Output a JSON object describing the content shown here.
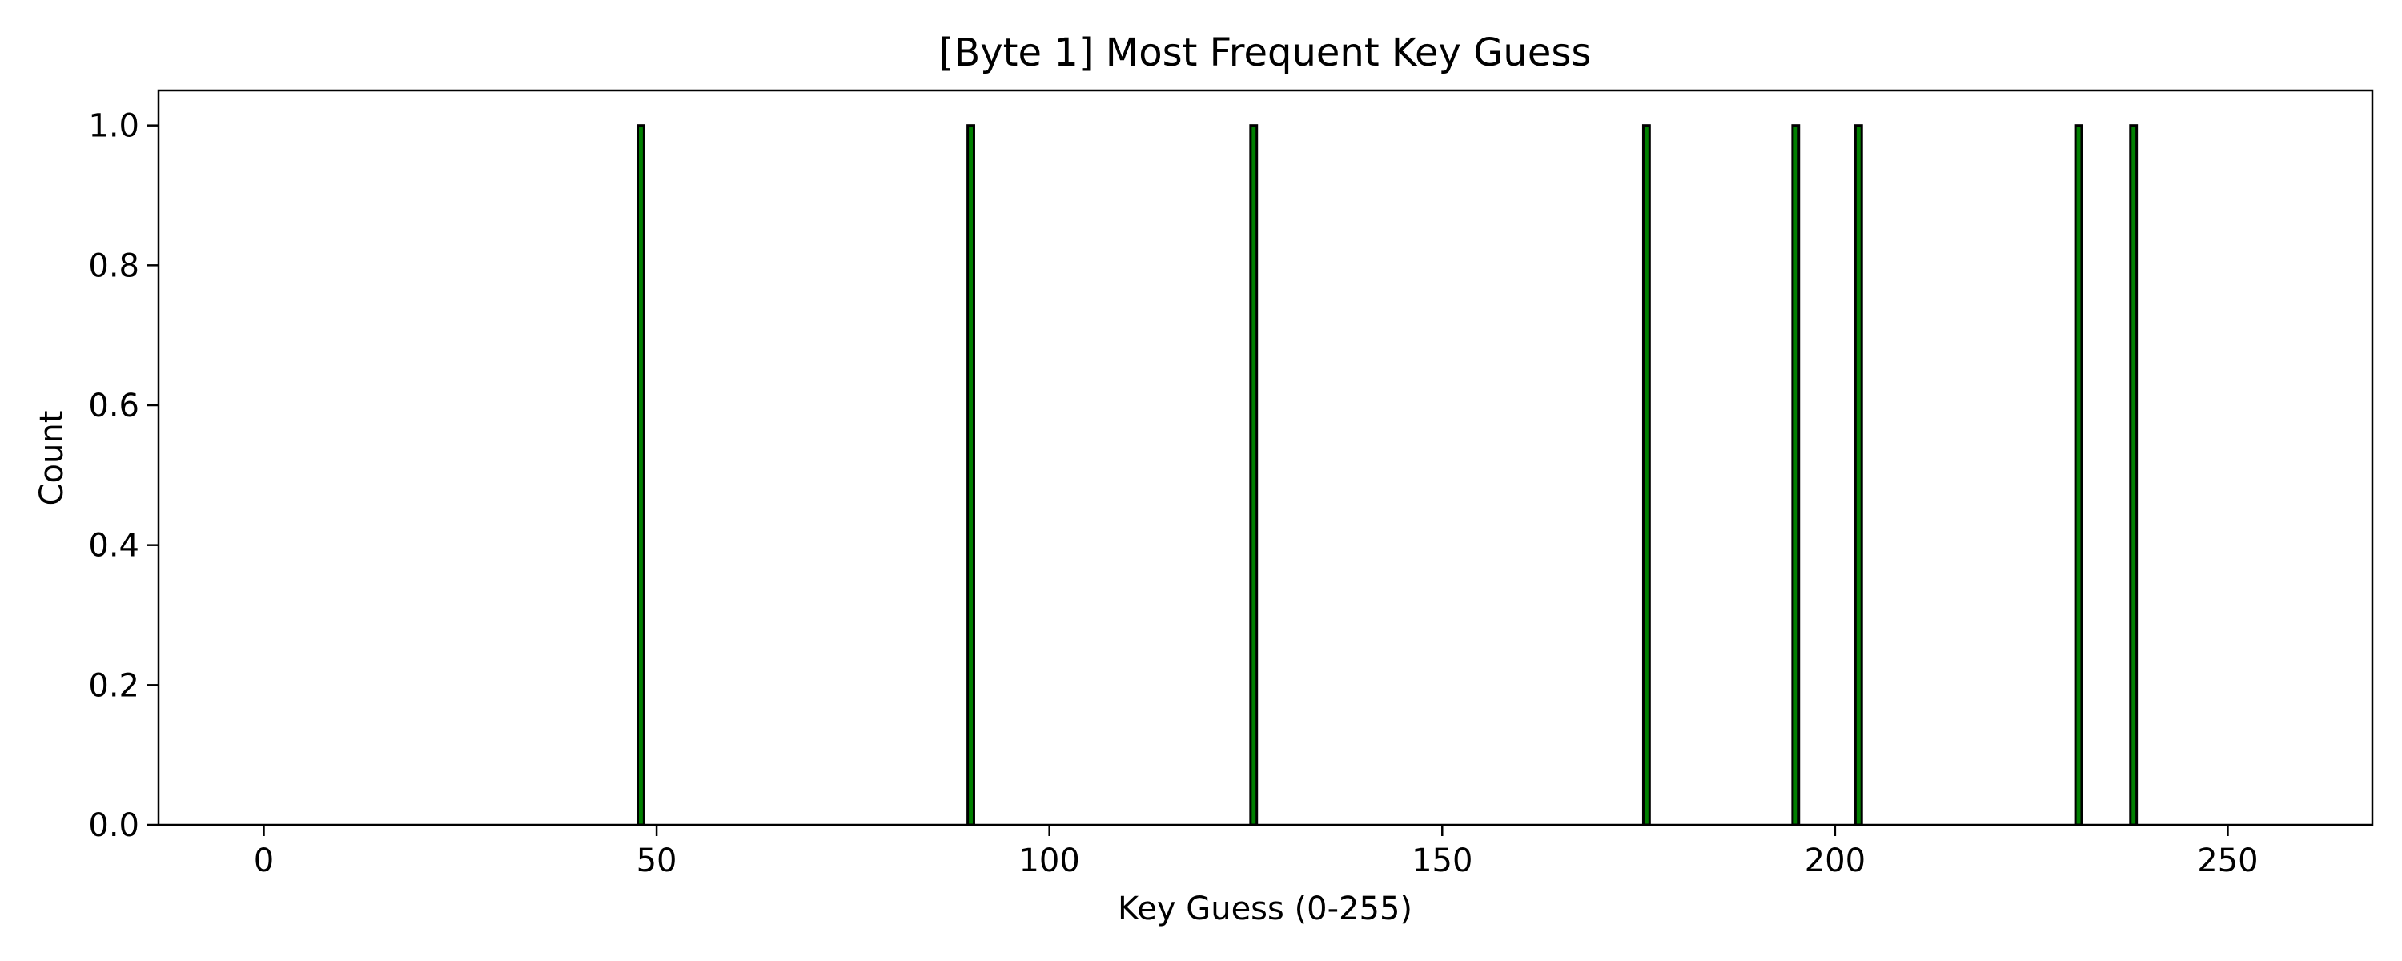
{
  "chart_data": {
    "type": "bar",
    "title": "[Byte 1] Most Frequent Key Guess",
    "xlabel": "Key Guess (0-255)",
    "ylabel": "Count",
    "x_range": [
      0,
      255
    ],
    "xlim": [
      -13.4,
      268.4
    ],
    "ylim": [
      0,
      1.05
    ],
    "xticks": [
      0,
      50,
      100,
      150,
      200,
      250
    ],
    "yticks": [
      0.0,
      0.2,
      0.4,
      0.6,
      0.8,
      1.0
    ],
    "ytick_labels": [
      "0.0",
      "0.2",
      "0.4",
      "0.6",
      "0.8",
      "1.0"
    ],
    "bars": [
      {
        "x": 48,
        "value": 1
      },
      {
        "x": 90,
        "value": 1
      },
      {
        "x": 126,
        "value": 1
      },
      {
        "x": 176,
        "value": 1
      },
      {
        "x": 195,
        "value": 1
      },
      {
        "x": 203,
        "value": 1
      },
      {
        "x": 231,
        "value": 1
      },
      {
        "x": 238,
        "value": 1
      }
    ],
    "bar_color": "#008000",
    "edge_color": "#000000",
    "grid": false,
    "legend": "none"
  }
}
